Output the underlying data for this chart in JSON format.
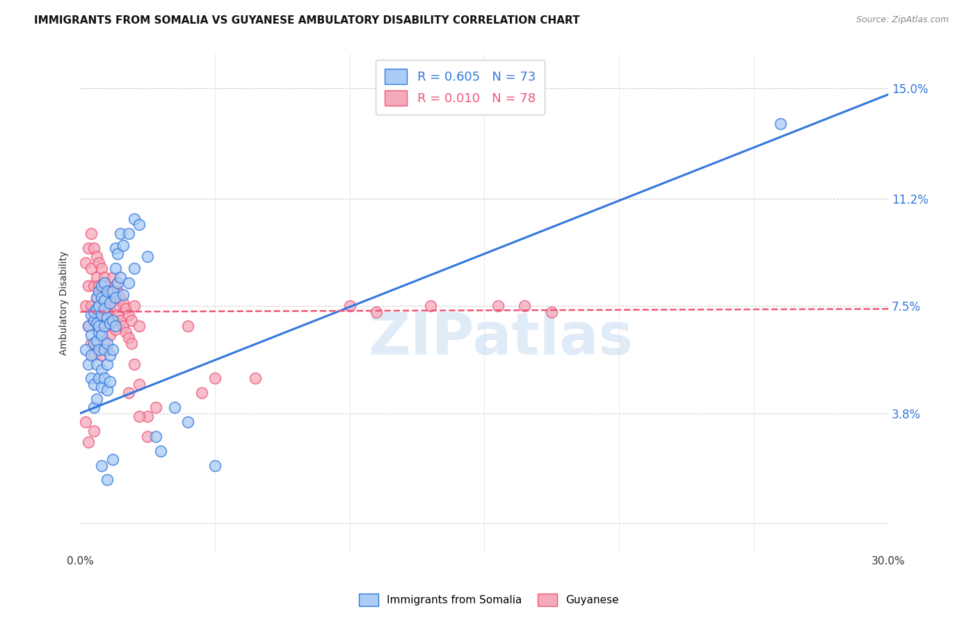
{
  "title": "IMMIGRANTS FROM SOMALIA VS GUYANESE AMBULATORY DISABILITY CORRELATION CHART",
  "source": "Source: ZipAtlas.com",
  "ylabel": "Ambulatory Disability",
  "yticks": [
    0.0,
    0.038,
    0.075,
    0.112,
    0.15
  ],
  "ytick_labels": [
    "",
    "3.8%",
    "7.5%",
    "11.2%",
    "15.0%"
  ],
  "xlim": [
    0.0,
    0.3
  ],
  "ylim": [
    -0.01,
    0.162
  ],
  "legend_r1": "R = 0.605",
  "legend_n1": "N = 73",
  "legend_r2": "R = 0.010",
  "legend_n2": "N = 78",
  "color_somalia": "#aaccf5",
  "color_guyanese": "#f5aabb",
  "color_somalia_line": "#3377dd",
  "color_guyanese_line": "#ee5577",
  "watermark": "ZIPatlas",
  "somalia_scatter": [
    [
      0.002,
      0.06
    ],
    [
      0.003,
      0.068
    ],
    [
      0.003,
      0.055
    ],
    [
      0.004,
      0.072
    ],
    [
      0.004,
      0.065
    ],
    [
      0.004,
      0.058
    ],
    [
      0.004,
      0.05
    ],
    [
      0.005,
      0.07
    ],
    [
      0.005,
      0.062
    ],
    [
      0.005,
      0.073
    ],
    [
      0.005,
      0.048
    ],
    [
      0.005,
      0.04
    ],
    [
      0.006,
      0.078
    ],
    [
      0.006,
      0.069
    ],
    [
      0.006,
      0.063
    ],
    [
      0.006,
      0.055
    ],
    [
      0.006,
      0.074
    ],
    [
      0.006,
      0.043
    ],
    [
      0.007,
      0.066
    ],
    [
      0.007,
      0.05
    ],
    [
      0.007,
      0.08
    ],
    [
      0.007,
      0.075
    ],
    [
      0.007,
      0.068
    ],
    [
      0.007,
      0.06
    ],
    [
      0.008,
      0.078
    ],
    [
      0.008,
      0.082
    ],
    [
      0.008,
      0.072
    ],
    [
      0.008,
      0.065
    ],
    [
      0.008,
      0.053
    ],
    [
      0.008,
      0.047
    ],
    [
      0.009,
      0.077
    ],
    [
      0.009,
      0.083
    ],
    [
      0.009,
      0.068
    ],
    [
      0.009,
      0.06
    ],
    [
      0.009,
      0.074
    ],
    [
      0.009,
      0.05
    ],
    [
      0.01,
      0.08
    ],
    [
      0.01,
      0.071
    ],
    [
      0.01,
      0.062
    ],
    [
      0.01,
      0.055
    ],
    [
      0.01,
      0.046
    ],
    [
      0.011,
      0.076
    ],
    [
      0.011,
      0.069
    ],
    [
      0.011,
      0.058
    ],
    [
      0.011,
      0.049
    ],
    [
      0.012,
      0.08
    ],
    [
      0.012,
      0.07
    ],
    [
      0.012,
      0.06
    ],
    [
      0.013,
      0.095
    ],
    [
      0.013,
      0.088
    ],
    [
      0.013,
      0.078
    ],
    [
      0.013,
      0.068
    ],
    [
      0.014,
      0.093
    ],
    [
      0.014,
      0.083
    ],
    [
      0.015,
      0.1
    ],
    [
      0.015,
      0.085
    ],
    [
      0.016,
      0.096
    ],
    [
      0.016,
      0.079
    ],
    [
      0.018,
      0.1
    ],
    [
      0.018,
      0.083
    ],
    [
      0.02,
      0.105
    ],
    [
      0.02,
      0.088
    ],
    [
      0.022,
      0.103
    ],
    [
      0.025,
      0.092
    ],
    [
      0.028,
      0.03
    ],
    [
      0.03,
      0.025
    ],
    [
      0.035,
      0.04
    ],
    [
      0.04,
      0.035
    ],
    [
      0.008,
      0.02
    ],
    [
      0.01,
      0.015
    ],
    [
      0.012,
      0.022
    ],
    [
      0.05,
      0.02
    ],
    [
      0.26,
      0.138
    ]
  ],
  "guyanese_scatter": [
    [
      0.002,
      0.09
    ],
    [
      0.002,
      0.075
    ],
    [
      0.003,
      0.095
    ],
    [
      0.003,
      0.082
    ],
    [
      0.003,
      0.068
    ],
    [
      0.004,
      0.1
    ],
    [
      0.004,
      0.088
    ],
    [
      0.004,
      0.075
    ],
    [
      0.004,
      0.062
    ],
    [
      0.005,
      0.095
    ],
    [
      0.005,
      0.082
    ],
    [
      0.005,
      0.07
    ],
    [
      0.005,
      0.058
    ],
    [
      0.006,
      0.092
    ],
    [
      0.006,
      0.085
    ],
    [
      0.006,
      0.078
    ],
    [
      0.006,
      0.07
    ],
    [
      0.006,
      0.062
    ],
    [
      0.007,
      0.09
    ],
    [
      0.007,
      0.082
    ],
    [
      0.007,
      0.075
    ],
    [
      0.007,
      0.068
    ],
    [
      0.008,
      0.088
    ],
    [
      0.008,
      0.08
    ],
    [
      0.008,
      0.072
    ],
    [
      0.008,
      0.065
    ],
    [
      0.008,
      0.058
    ],
    [
      0.009,
      0.085
    ],
    [
      0.009,
      0.078
    ],
    [
      0.009,
      0.07
    ],
    [
      0.009,
      0.063
    ],
    [
      0.01,
      0.082
    ],
    [
      0.01,
      0.075
    ],
    [
      0.01,
      0.068
    ],
    [
      0.01,
      0.06
    ],
    [
      0.011,
      0.08
    ],
    [
      0.011,
      0.073
    ],
    [
      0.011,
      0.065
    ],
    [
      0.012,
      0.085
    ],
    [
      0.012,
      0.077
    ],
    [
      0.012,
      0.07
    ],
    [
      0.013,
      0.082
    ],
    [
      0.013,
      0.075
    ],
    [
      0.013,
      0.067
    ],
    [
      0.014,
      0.08
    ],
    [
      0.014,
      0.072
    ],
    [
      0.015,
      0.078
    ],
    [
      0.015,
      0.07
    ],
    [
      0.016,
      0.076
    ],
    [
      0.016,
      0.068
    ],
    [
      0.017,
      0.074
    ],
    [
      0.017,
      0.066
    ],
    [
      0.018,
      0.072
    ],
    [
      0.018,
      0.064
    ],
    [
      0.019,
      0.07
    ],
    [
      0.019,
      0.062
    ],
    [
      0.02,
      0.075
    ],
    [
      0.02,
      0.055
    ],
    [
      0.022,
      0.068
    ],
    [
      0.022,
      0.048
    ],
    [
      0.025,
      0.037
    ],
    [
      0.028,
      0.04
    ],
    [
      0.04,
      0.068
    ],
    [
      0.045,
      0.045
    ],
    [
      0.05,
      0.05
    ],
    [
      0.065,
      0.05
    ],
    [
      0.1,
      0.075
    ],
    [
      0.11,
      0.073
    ],
    [
      0.13,
      0.075
    ],
    [
      0.155,
      0.075
    ],
    [
      0.165,
      0.075
    ],
    [
      0.175,
      0.073
    ],
    [
      0.002,
      0.035
    ],
    [
      0.003,
      0.028
    ],
    [
      0.005,
      0.032
    ],
    [
      0.018,
      0.045
    ],
    [
      0.022,
      0.037
    ],
    [
      0.025,
      0.03
    ]
  ],
  "somalia_line_x": [
    0.0,
    0.3
  ],
  "somalia_line_y": [
    0.038,
    0.148
  ],
  "guyanese_line_x": [
    0.0,
    0.3
  ],
  "guyanese_line_y": [
    0.073,
    0.074
  ]
}
